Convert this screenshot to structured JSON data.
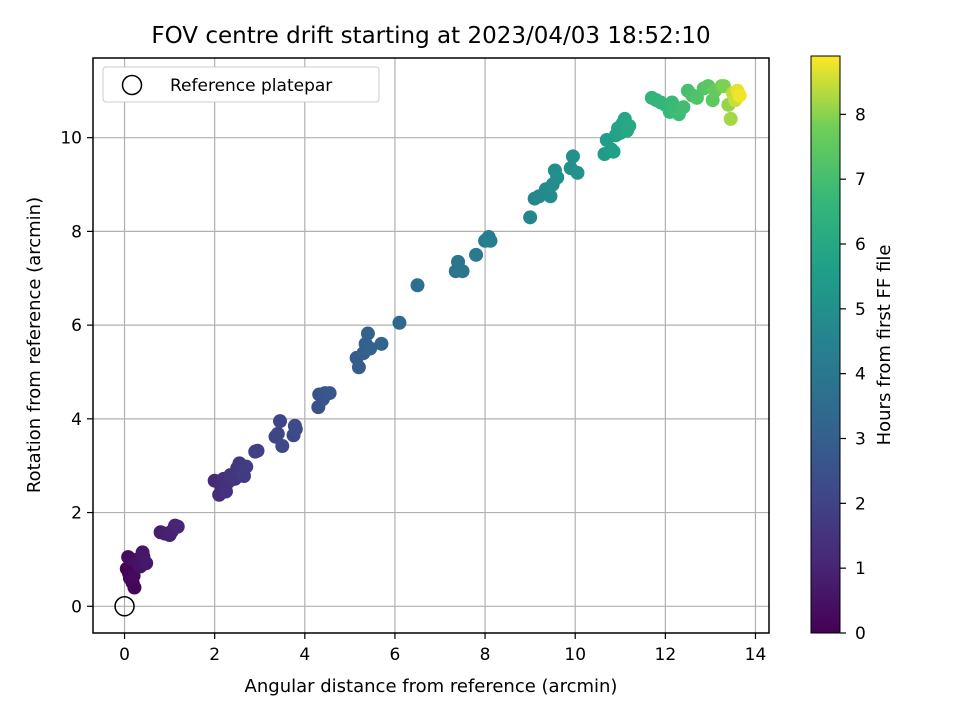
{
  "chart_data": {
    "type": "scatter",
    "title": "FOV centre drift starting at 2023/04/03 18:52:10",
    "xlabel": "Angular distance from reference (arcmin)",
    "ylabel": "Rotation from reference (arcmin)",
    "xlim": [
      -0.7,
      14.3
    ],
    "ylim": [
      -0.57,
      11.7
    ],
    "xticks": [
      0,
      2,
      4,
      6,
      8,
      10,
      12,
      14
    ],
    "yticks": [
      0,
      2,
      4,
      6,
      8,
      10
    ],
    "xtick_labels": [
      "0",
      "2",
      "4",
      "6",
      "8",
      "10",
      "12",
      "14"
    ],
    "ytick_labels": [
      "0",
      "2",
      "4",
      "6",
      "8",
      "10"
    ],
    "grid": true,
    "legend": {
      "position": "top-left",
      "entries": [
        "Reference platepar"
      ]
    },
    "colorbar": {
      "label": "Hours from first FF file",
      "min": 0,
      "max": 8.9,
      "ticks": [
        0,
        1,
        2,
        3,
        4,
        5,
        6,
        7,
        8
      ],
      "tick_labels": [
        "0",
        "1",
        "2",
        "3",
        "4",
        "5",
        "6",
        "7",
        "8"
      ],
      "colormap": "viridis"
    },
    "reference_point": {
      "x": 0,
      "y": 0,
      "name": "Reference platepar"
    },
    "series": [
      {
        "points": [
          [
            0.05,
            0.8,
            0.0
          ],
          [
            0.1,
            0.7,
            0.05
          ],
          [
            0.18,
            0.5,
            0.1
          ],
          [
            0.22,
            0.4,
            0.15
          ],
          [
            0.12,
            0.6,
            0.2
          ],
          [
            0.2,
            0.65,
            0.25
          ],
          [
            0.08,
            1.05,
            0.3
          ],
          [
            0.15,
            1.0,
            0.35
          ],
          [
            0.25,
            0.95,
            0.4
          ],
          [
            0.3,
            1.0,
            0.45
          ],
          [
            0.35,
            0.85,
            0.5
          ],
          [
            0.42,
            1.05,
            0.55
          ],
          [
            0.4,
            1.15,
            0.6
          ],
          [
            0.48,
            0.92,
            0.65
          ],
          [
            0.8,
            1.58,
            0.8
          ],
          [
            0.9,
            1.55,
            0.85
          ],
          [
            1.0,
            1.52,
            0.9
          ],
          [
            1.05,
            1.6,
            0.95
          ],
          [
            1.12,
            1.72,
            1.0
          ],
          [
            1.18,
            1.7,
            1.05
          ],
          [
            2.0,
            2.68,
            1.2
          ],
          [
            2.1,
            2.38,
            1.25
          ],
          [
            2.15,
            2.55,
            1.3
          ],
          [
            2.2,
            2.72,
            1.35
          ],
          [
            2.25,
            2.45,
            1.4
          ],
          [
            2.3,
            2.65,
            1.45
          ],
          [
            2.35,
            2.8,
            1.5
          ],
          [
            2.45,
            2.72,
            1.55
          ],
          [
            2.5,
            2.95,
            1.6
          ],
          [
            2.55,
            3.05,
            1.65
          ],
          [
            2.6,
            2.9,
            1.7
          ],
          [
            2.65,
            2.78,
            1.75
          ],
          [
            2.7,
            2.98,
            1.8
          ],
          [
            2.9,
            3.3,
            1.85
          ],
          [
            2.95,
            3.32,
            1.9
          ],
          [
            3.35,
            3.62,
            2.0
          ],
          [
            3.4,
            3.68,
            2.05
          ],
          [
            3.45,
            3.95,
            2.1
          ],
          [
            3.5,
            3.42,
            2.15
          ],
          [
            3.75,
            3.65,
            2.2
          ],
          [
            3.78,
            3.85,
            2.25
          ],
          [
            3.8,
            3.78,
            2.3
          ],
          [
            4.3,
            4.25,
            2.5
          ],
          [
            4.32,
            4.52,
            2.55
          ],
          [
            4.4,
            4.42,
            2.6
          ],
          [
            4.45,
            4.55,
            2.65
          ],
          [
            4.55,
            4.55,
            2.7
          ],
          [
            5.15,
            5.3,
            2.9
          ],
          [
            5.2,
            5.1,
            2.95
          ],
          [
            5.3,
            5.4,
            3.0
          ],
          [
            5.35,
            5.6,
            3.05
          ],
          [
            5.4,
            5.82,
            3.1
          ],
          [
            5.45,
            5.5,
            3.15
          ],
          [
            5.7,
            5.6,
            3.2
          ],
          [
            6.1,
            6.05,
            3.4
          ],
          [
            6.5,
            6.85,
            3.6
          ],
          [
            7.35,
            7.15,
            3.85
          ],
          [
            7.4,
            7.35,
            3.9
          ],
          [
            7.5,
            7.15,
            3.95
          ],
          [
            7.8,
            7.5,
            4.1
          ],
          [
            8.0,
            7.8,
            4.2
          ],
          [
            8.08,
            7.88,
            4.25
          ],
          [
            8.12,
            7.8,
            4.3
          ],
          [
            9.0,
            8.3,
            4.6
          ],
          [
            9.1,
            8.7,
            4.65
          ],
          [
            9.2,
            8.75,
            4.7
          ],
          [
            9.35,
            8.9,
            4.75
          ],
          [
            9.45,
            8.75,
            4.8
          ],
          [
            9.5,
            9.0,
            4.85
          ],
          [
            9.55,
            9.3,
            4.9
          ],
          [
            9.6,
            9.15,
            4.95
          ],
          [
            9.9,
            9.35,
            5.0
          ],
          [
            9.95,
            9.6,
            5.05
          ],
          [
            10.05,
            9.25,
            5.1
          ],
          [
            10.65,
            9.65,
            5.5
          ],
          [
            10.7,
            9.95,
            5.55
          ],
          [
            10.8,
            9.75,
            5.6
          ],
          [
            10.85,
            9.7,
            5.65
          ],
          [
            10.9,
            10.05,
            5.7
          ],
          [
            10.95,
            10.2,
            5.75
          ],
          [
            11.0,
            10.1,
            5.8
          ],
          [
            11.05,
            10.3,
            5.85
          ],
          [
            11.1,
            10.4,
            5.9
          ],
          [
            11.15,
            10.15,
            5.95
          ],
          [
            11.2,
            10.25,
            6.0
          ],
          [
            11.7,
            10.85,
            6.5
          ],
          [
            11.8,
            10.8,
            6.55
          ],
          [
            11.9,
            10.75,
            6.6
          ],
          [
            12.0,
            10.7,
            6.65
          ],
          [
            12.1,
            10.55,
            6.7
          ],
          [
            12.15,
            10.75,
            6.75
          ],
          [
            12.2,
            10.6,
            6.8
          ],
          [
            12.3,
            10.5,
            6.85
          ],
          [
            12.4,
            10.65,
            6.9
          ],
          [
            12.5,
            11.0,
            7.0
          ],
          [
            12.6,
            10.9,
            7.1
          ],
          [
            12.7,
            10.85,
            7.2
          ],
          [
            12.85,
            11.05,
            7.3
          ],
          [
            12.95,
            11.1,
            7.4
          ],
          [
            13.05,
            10.8,
            7.5
          ],
          [
            13.1,
            11.0,
            7.6
          ],
          [
            13.25,
            11.1,
            7.8
          ],
          [
            13.3,
            11.1,
            7.9
          ],
          [
            13.4,
            10.7,
            8.1
          ],
          [
            13.45,
            10.4,
            8.2
          ],
          [
            13.5,
            10.95,
            8.4
          ],
          [
            13.55,
            10.8,
            8.5
          ],
          [
            13.6,
            11.0,
            8.7
          ],
          [
            13.65,
            10.9,
            8.8
          ]
        ]
      }
    ]
  }
}
